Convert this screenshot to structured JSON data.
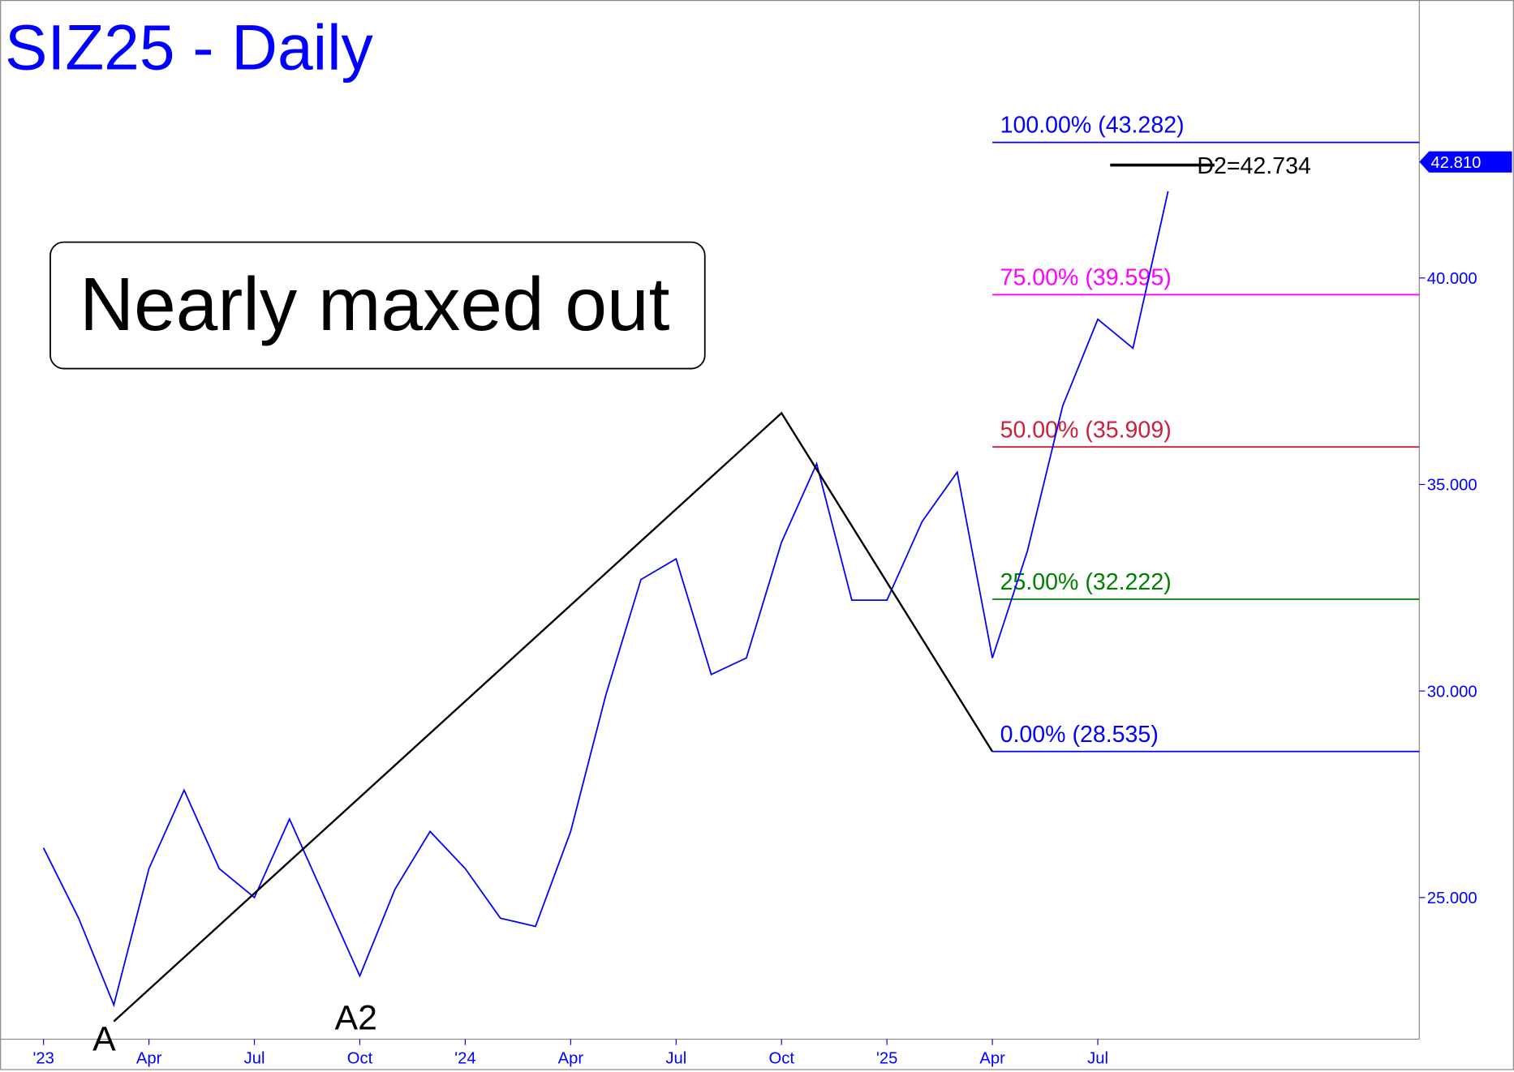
{
  "chart_data": {
    "type": "line",
    "title": "SIZ25 - Daily",
    "annotation": "Nearly maxed out",
    "x": [
      "2023-01",
      "2023-02",
      "2023-03",
      "2023-04",
      "2023-05",
      "2023-06",
      "2023-07",
      "2023-08",
      "2023-09",
      "2023-10",
      "2023-11",
      "2023-12",
      "2024-01",
      "2024-02",
      "2024-03",
      "2024-04",
      "2024-05",
      "2024-06",
      "2024-07",
      "2024-08",
      "2024-09",
      "2024-10",
      "2024-11",
      "2024-12",
      "2025-01",
      "2025-02",
      "2025-03",
      "2025-04",
      "2025-05",
      "2025-06",
      "2025-07",
      "2025-08",
      "2025-09"
    ],
    "values": [
      26.2,
      24.5,
      22.4,
      25.7,
      27.6,
      25.7,
      25.0,
      26.9,
      25.0,
      23.1,
      25.2,
      26.6,
      25.7,
      24.5,
      24.3,
      26.6,
      29.9,
      32.7,
      33.2,
      30.4,
      30.8,
      33.6,
      35.5,
      32.2,
      32.2,
      34.1,
      35.3,
      30.8,
      33.4,
      36.9,
      39.0,
      38.3,
      42.1
    ],
    "color": "#0000ff",
    "ylim": [
      21.57,
      46.73
    ],
    "yticks": [
      {
        "value": 25,
        "label": "25.000"
      },
      {
        "value": 30,
        "label": "30.000"
      },
      {
        "value": 35,
        "label": "35.000"
      },
      {
        "value": 40,
        "label": "40.000"
      }
    ],
    "xticks": [
      {
        "value": "2023-01",
        "label": "'23"
      },
      {
        "value": "2023-04",
        "label": "Apr"
      },
      {
        "value": "2023-07",
        "label": "Jul"
      },
      {
        "value": "2023-10",
        "label": "Oct"
      },
      {
        "value": "2024-01",
        "label": "'24"
      },
      {
        "value": "2024-04",
        "label": "Apr"
      },
      {
        "value": "2024-07",
        "label": "Jul"
      },
      {
        "value": "2024-10",
        "label": "Oct"
      },
      {
        "value": "2025-01",
        "label": "'25"
      },
      {
        "value": "2025-04",
        "label": "Apr"
      },
      {
        "value": "2025-07",
        "label": "Jul"
      }
    ],
    "last_price": {
      "value": 42.81,
      "label": "42.810"
    },
    "pattern": [
      {
        "x": "2023-03",
        "y": 22.0,
        "label": "A"
      },
      {
        "x": "2024-10",
        "y": 36.73
      },
      {
        "x": "2025-04",
        "y": 28.535
      }
    ],
    "pattern_label": {
      "x": "2023-10",
      "label": "A2"
    },
    "fib_levels": [
      {
        "value": 28.535,
        "label": "0.00% (28.535)",
        "color": "#0000ff"
      },
      {
        "value": 32.222,
        "label": "25.00% (32.222)",
        "color": "#008000"
      },
      {
        "value": 35.909,
        "label": "50.00% (35.909)",
        "color": "#cc1f3c"
      },
      {
        "value": 39.595,
        "label": "75.00% (39.595)",
        "color": "#ff00ff"
      },
      {
        "value": 43.282,
        "label": "100.00% (43.282)",
        "color": "#0000ff"
      }
    ],
    "target": {
      "value": 42.734,
      "label": "D2=42.734",
      "x": "2025-09"
    }
  }
}
